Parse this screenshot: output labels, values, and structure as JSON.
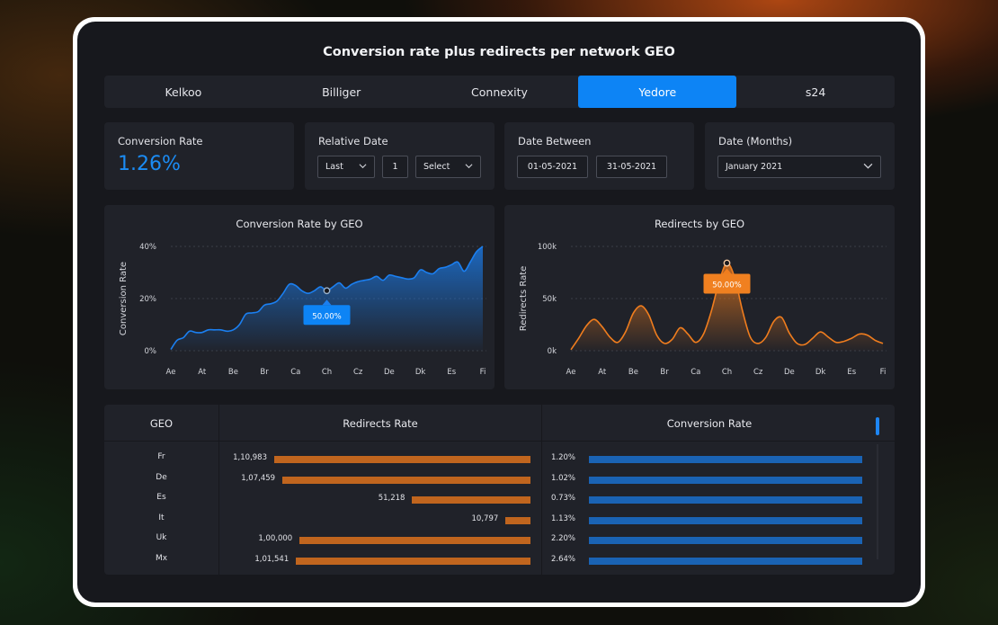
{
  "title": "Conversion rate plus redirects per network GEO",
  "tabs": [
    {
      "label": "Kelkoo",
      "active": false
    },
    {
      "label": "Billiger",
      "active": false
    },
    {
      "label": "Connexity",
      "active": false
    },
    {
      "label": "Yedore",
      "active": true
    },
    {
      "label": "s24",
      "active": false
    }
  ],
  "kpi": {
    "label": "Conversion Rate",
    "value": "1.26%"
  },
  "relative_date": {
    "label": "Relative Date",
    "mode": "Last",
    "amount": "1",
    "unit": "Select"
  },
  "date_between": {
    "label": "Date Between",
    "from": "01-05-2021",
    "to": "31-05-2021"
  },
  "date_months": {
    "label": "Date (Months)",
    "value": "January 2021"
  },
  "colors": {
    "accent": "#0d84f5",
    "blue_series": "#1b7ff0",
    "orange_series": "#f07d1e",
    "orange_bar": "#c0651e",
    "blue_bar": "#1a63b4"
  },
  "chart_data": [
    {
      "type": "area",
      "title": "Conversion Rate by GEO",
      "ylabel": "Conversion Rate",
      "xlabel": "",
      "categories": [
        "Ae",
        "At",
        "Be",
        "Br",
        "Ca",
        "Ch",
        "Cz",
        "De",
        "Dk",
        "Es",
        "Fi"
      ],
      "yticks": [
        "0%",
        "20%",
        "40%"
      ],
      "ylim": [
        0,
        40
      ],
      "tooltip": {
        "label": "50.00%",
        "category_index": 5
      },
      "series_x": [
        0,
        0.2,
        0.4,
        0.6,
        0.8,
        1,
        1.2,
        1.4,
        1.6,
        1.8,
        2,
        2.2,
        2.4,
        2.6,
        2.8,
        3,
        3.2,
        3.4,
        3.6,
        3.8,
        4,
        4.2,
        4.4,
        4.6,
        4.8,
        5,
        5.2,
        5.4,
        5.6,
        5.8,
        6,
        6.2,
        6.4,
        6.6,
        6.8,
        7,
        7.2,
        7.4,
        7.6,
        7.8,
        8,
        8.2,
        8.4,
        8.6,
        8.8,
        9,
        9.2,
        9.4,
        9.6,
        9.8,
        10
      ],
      "series_y": [
        0.5,
        4,
        5,
        7.5,
        7,
        7,
        8,
        8,
        8,
        7.5,
        8,
        10,
        14,
        14.5,
        15,
        17.5,
        18,
        19,
        22,
        25.5,
        25,
        23,
        22,
        23,
        24.5,
        23,
        24.5,
        26,
        24,
        25.5,
        26.5,
        27,
        27.5,
        28.5,
        27,
        29,
        28.5,
        28,
        27.5,
        28,
        31,
        30,
        29.5,
        31.5,
        32,
        33,
        34,
        30.5,
        34,
        38,
        40
      ],
      "grid": true
    },
    {
      "type": "area",
      "title": "Redirects by GEO",
      "ylabel": "Redirects Rate",
      "xlabel": "",
      "categories": [
        "Ae",
        "At",
        "Be",
        "Br",
        "Ca",
        "Ch",
        "Cz",
        "De",
        "Dk",
        "Es",
        "Fi"
      ],
      "yticks": [
        "0k",
        "50k",
        "100k"
      ],
      "ylim": [
        0,
        100
      ],
      "tooltip": {
        "label": "50.00%",
        "category_index": 5
      },
      "series_x": [
        0,
        0.25,
        0.5,
        0.75,
        1,
        1.25,
        1.5,
        1.75,
        2,
        2.25,
        2.5,
        2.75,
        3,
        3.25,
        3.5,
        3.75,
        4,
        4.25,
        4.5,
        4.75,
        5,
        5.25,
        5.5,
        5.75,
        6,
        6.25,
        6.5,
        6.75,
        7,
        7.25,
        7.5,
        7.75,
        8,
        8.25,
        8.5,
        8.75,
        9,
        9.25,
        9.5,
        9.75,
        10
      ],
      "series_y": [
        1,
        12,
        24,
        30,
        23,
        13,
        8,
        18,
        36,
        43,
        34,
        15,
        7,
        11,
        22,
        16,
        8,
        16,
        38,
        66,
        84,
        70,
        38,
        13,
        7,
        13,
        28,
        32,
        17,
        7,
        6,
        12,
        18,
        13,
        8,
        9,
        12,
        16,
        15,
        10,
        7
      ],
      "grid": true
    }
  ],
  "table": {
    "headers": [
      "GEO",
      "Redirects Rate",
      "Conversion Rate"
    ],
    "rows": [
      {
        "geo": "Fr",
        "redirects": "1,10,983",
        "redirects_value": 110983,
        "conversion": "1.20%",
        "conversion_value": 1.2
      },
      {
        "geo": "De",
        "redirects": "1,07,459",
        "redirects_value": 107459,
        "conversion": "1.02%",
        "conversion_value": 1.02
      },
      {
        "geo": "Es",
        "redirects": "51,218",
        "redirects_value": 51218,
        "conversion": "0.73%",
        "conversion_value": 0.73
      },
      {
        "geo": "It",
        "redirects": "10,797",
        "redirects_value": 10797,
        "conversion": "1.13%",
        "conversion_value": 1.13
      },
      {
        "geo": "Uk",
        "redirects": "1,00,000",
        "redirects_value": 100000,
        "conversion": "2.20%",
        "conversion_value": 2.2
      },
      {
        "geo": "Mx",
        "redirects": "1,01,541",
        "redirects_value": 101541,
        "conversion": "2.64%",
        "conversion_value": 2.64
      }
    ]
  }
}
